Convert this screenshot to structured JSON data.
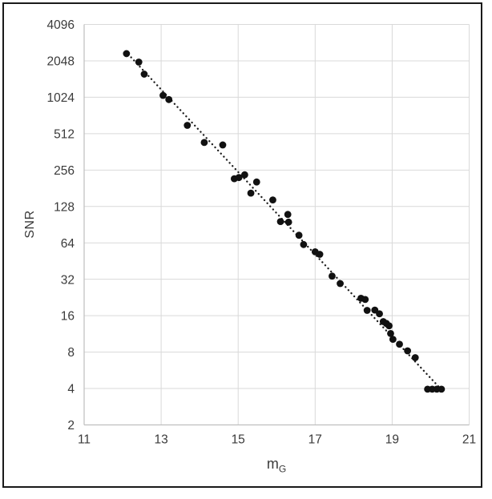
{
  "frame": {
    "background": "#ffffff",
    "border_color": "#1a1a1a"
  },
  "chart_data": {
    "type": "scatter",
    "title": "",
    "xlabel_base": "m",
    "xlabel_sub": "G",
    "ylabel": "SNR",
    "xlim": [
      11,
      21
    ],
    "ylim": [
      2,
      4096
    ],
    "y_scale": "log2",
    "grid": true,
    "legend": "none",
    "x_ticks": [
      11,
      13,
      15,
      17,
      19,
      21
    ],
    "y_ticks": [
      2,
      4,
      8,
      16,
      32,
      64,
      128,
      256,
      512,
      1024,
      2048,
      4096
    ],
    "marker_color": "#111111",
    "marker_radius": 4.4,
    "gridline_color": "#d9d9d9",
    "axis_line_color": "#bfbfbf",
    "tick_label_color": "#3a3a3a",
    "points": [
      {
        "x": 12.1,
        "y": 2350
      },
      {
        "x": 12.42,
        "y": 2000
      },
      {
        "x": 12.56,
        "y": 1590
      },
      {
        "x": 13.05,
        "y": 1060
      },
      {
        "x": 13.2,
        "y": 980
      },
      {
        "x": 13.68,
        "y": 600
      },
      {
        "x": 14.12,
        "y": 433
      },
      {
        "x": 14.6,
        "y": 413
      },
      {
        "x": 14.9,
        "y": 217
      },
      {
        "x": 15.02,
        "y": 222
      },
      {
        "x": 15.17,
        "y": 234
      },
      {
        "x": 15.33,
        "y": 165
      },
      {
        "x": 15.48,
        "y": 204
      },
      {
        "x": 15.9,
        "y": 145
      },
      {
        "x": 16.1,
        "y": 96
      },
      {
        "x": 16.29,
        "y": 110
      },
      {
        "x": 16.31,
        "y": 95
      },
      {
        "x": 16.58,
        "y": 74
      },
      {
        "x": 16.7,
        "y": 62
      },
      {
        "x": 17.0,
        "y": 54
      },
      {
        "x": 17.12,
        "y": 51.5
      },
      {
        "x": 17.44,
        "y": 34
      },
      {
        "x": 17.65,
        "y": 29.5
      },
      {
        "x": 18.19,
        "y": 22.3
      },
      {
        "x": 18.3,
        "y": 21.8
      },
      {
        "x": 18.35,
        "y": 17.7
      },
      {
        "x": 18.55,
        "y": 17.8
      },
      {
        "x": 18.67,
        "y": 16.6
      },
      {
        "x": 18.77,
        "y": 14.3
      },
      {
        "x": 18.85,
        "y": 13.8
      },
      {
        "x": 18.92,
        "y": 13.2
      },
      {
        "x": 18.96,
        "y": 11.4
      },
      {
        "x": 19.02,
        "y": 10.2
      },
      {
        "x": 19.19,
        "y": 9.3
      },
      {
        "x": 19.4,
        "y": 8.2
      },
      {
        "x": 19.6,
        "y": 7.2
      },
      {
        "x": 19.92,
        "y": 3.95
      },
      {
        "x": 20.04,
        "y": 3.95
      },
      {
        "x": 20.16,
        "y": 3.95
      },
      {
        "x": 20.28,
        "y": 3.95
      }
    ],
    "trendline": {
      "style": "dotted",
      "color": "#1c1c1c",
      "x1": 12.22,
      "y1": 2190,
      "x2": 20.3,
      "y2": 3.85
    }
  }
}
